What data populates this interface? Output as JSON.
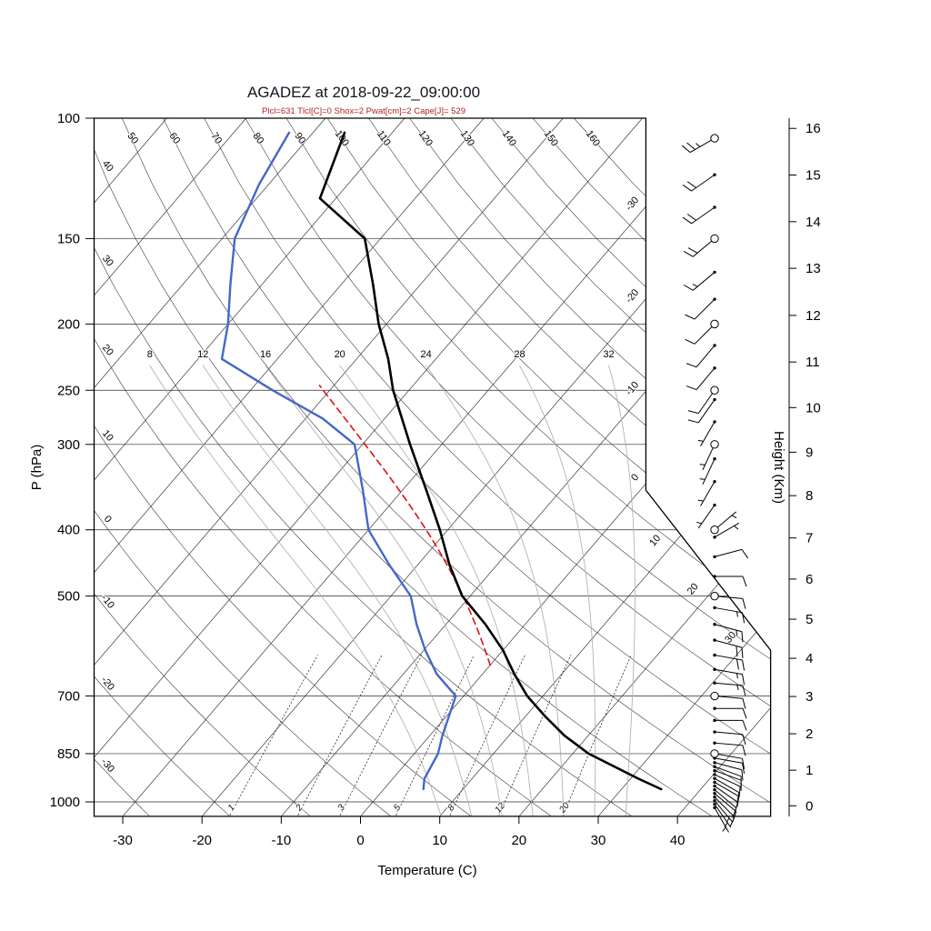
{
  "header": {
    "title": "AGADEZ at 2018-09-22_09:00:00",
    "stats_line": "Plcl=631 Tlcl[C]=0 Shox=2 Pwat[cm]=2 Cape[J]= 529"
  },
  "chart_data": {
    "type": "skewt_log_p_sounding",
    "station": "AGADEZ",
    "datetime": "2018-09-22_09:00:00",
    "indices": {
      "Plcl_hpa": 631,
      "Tlcl_C": 0,
      "Shox": 2,
      "Pwat_cm": 2,
      "Cape_J": 529
    },
    "axes": {
      "pressure_label": "P (hPa)",
      "pressure_ticks": [
        100,
        150,
        200,
        250,
        300,
        400,
        500,
        700,
        850,
        1000
      ],
      "pressure_range": [
        100,
        1050
      ],
      "temperature_label": "Temperature (C)",
      "temperature_ticks": [
        -30,
        -20,
        -10,
        0,
        10,
        20,
        30,
        40
      ],
      "height_label": "Height (Km)",
      "height_ticks": [
        0,
        1,
        2,
        3,
        4,
        5,
        6,
        7,
        8,
        9,
        10,
        11,
        12,
        13,
        14,
        15,
        16
      ]
    },
    "background": {
      "isotherms_c": {
        "start": -100,
        "end": 40,
        "step": 10
      },
      "isotherm_right_edge_labels": [
        0,
        -10,
        -20,
        -30
      ],
      "isotherm_diagonal_labels": [
        10,
        20,
        30
      ],
      "dry_adiabats_c": {
        "start": -30,
        "end": 160,
        "step": 10
      },
      "moist_adiabats_c": [
        8,
        12,
        16,
        20,
        24,
        28,
        32
      ],
      "mixing_ratio_g_kg": [
        1,
        2,
        3,
        5,
        8,
        12,
        20
      ]
    },
    "temperature_profile": {
      "pressure_hpa": [
        958,
        925,
        850,
        800,
        750,
        700,
        650,
        600,
        550,
        500,
        450,
        400,
        350,
        300,
        250,
        225,
        200,
        175,
        150,
        131,
        105
      ],
      "temp_c": [
        35,
        31,
        22,
        17,
        12.5,
        8,
        4,
        0,
        -5,
        -11,
        -16,
        -21,
        -27,
        -34,
        -42,
        -46,
        -51,
        -56,
        -62,
        -72,
        -76
      ]
    },
    "dewpoint_profile": {
      "pressure_hpa": [
        958,
        925,
        850,
        800,
        700,
        650,
        600,
        550,
        500,
        450,
        400,
        350,
        300,
        275,
        250,
        225,
        200,
        175,
        150,
        125,
        105
      ],
      "dewp_c": [
        5,
        4,
        3,
        1.6,
        -1,
        -5.8,
        -9.8,
        -13.7,
        -17.5,
        -23.6,
        -30,
        -35,
        -41,
        -47.8,
        -57.2,
        -67,
        -70,
        -74,
        -78.4,
        -81.2,
        -83
      ]
    },
    "parcel": {
      "p_lcl_hpa": 631,
      "t_lcl_c": 0,
      "p_top_hpa": 250
    },
    "winds": [
      {
        "p": 1020,
        "s": 3,
        "d": 150
      },
      {
        "p": 1008,
        "s": 5,
        "d": 145
      },
      {
        "p": 996,
        "s": 5,
        "d": 140
      },
      {
        "p": 984,
        "s": 8,
        "d": 135
      },
      {
        "p": 972,
        "s": 8,
        "d": 130
      },
      {
        "p": 960,
        "s": 10,
        "d": 130
      },
      {
        "p": 948,
        "s": 10,
        "d": 125
      },
      {
        "p": 936,
        "s": 10,
        "d": 120
      },
      {
        "p": 924,
        "s": 12,
        "d": 120
      },
      {
        "p": 912,
        "s": 12,
        "d": 115
      },
      {
        "p": 900,
        "s": 10,
        "d": 110
      },
      {
        "p": 888,
        "s": 10,
        "d": 110
      },
      {
        "p": 876,
        "s": 10,
        "d": 105
      },
      {
        "p": 863,
        "s": 8,
        "d": 100
      },
      {
        "p": 850,
        "s": 8,
        "d": 100,
        "m": "circle"
      },
      {
        "p": 820,
        "s": 8,
        "d": 95
      },
      {
        "p": 790,
        "s": 10,
        "d": 95
      },
      {
        "p": 760,
        "s": 10,
        "d": 90
      },
      {
        "p": 730,
        "s": 12,
        "d": 90
      },
      {
        "p": 700,
        "s": 12,
        "d": 95,
        "m": "circle"
      },
      {
        "p": 670,
        "s": 15,
        "d": 95
      },
      {
        "p": 640,
        "s": 15,
        "d": 100
      },
      {
        "p": 610,
        "s": 18,
        "d": 100
      },
      {
        "p": 580,
        "s": 18,
        "d": 105
      },
      {
        "p": 550,
        "s": 15,
        "d": 105
      },
      {
        "p": 520,
        "s": 15,
        "d": 100
      },
      {
        "p": 500,
        "s": 12,
        "d": 95,
        "m": "circle"
      },
      {
        "p": 468,
        "s": 10,
        "d": 90
      },
      {
        "p": 438,
        "s": 8,
        "d": 75
      },
      {
        "p": 410,
        "s": 5,
        "d": 60
      },
      {
        "p": 400,
        "s": 5,
        "d": 50,
        "m": "circle"
      },
      {
        "p": 368,
        "s": 4,
        "d": 215
      },
      {
        "p": 340,
        "s": 4,
        "d": 210
      },
      {
        "p": 315,
        "s": 5,
        "d": 205
      },
      {
        "p": 300,
        "s": 5,
        "d": 205,
        "m": "circle"
      },
      {
        "p": 278,
        "s": 6,
        "d": 210
      },
      {
        "p": 258,
        "s": 8,
        "d": 215
      },
      {
        "p": 250,
        "s": 8,
        "d": 215,
        "m": "circle"
      },
      {
        "p": 232,
        "s": 10,
        "d": 220
      },
      {
        "p": 215,
        "s": 10,
        "d": 220
      },
      {
        "p": 200,
        "s": 12,
        "d": 225,
        "m": "circle"
      },
      {
        "p": 184,
        "s": 12,
        "d": 225
      },
      {
        "p": 168,
        "s": 15,
        "d": 230
      },
      {
        "p": 150,
        "s": 18,
        "d": 230,
        "m": "circle"
      },
      {
        "p": 135,
        "s": 20,
        "d": 235
      },
      {
        "p": 121,
        "s": 22,
        "d": 235
      },
      {
        "p": 107,
        "s": 25,
        "d": 240,
        "m": "circle"
      }
    ],
    "colors": {
      "temperature_curve": "#000000",
      "dewpoint_curve": "#4468c8",
      "parcel_curve": "#dd1111",
      "moist_adiabat": "#b3b3b3",
      "background_line": "#2b2b2b",
      "stats_text": "#b22222"
    }
  }
}
